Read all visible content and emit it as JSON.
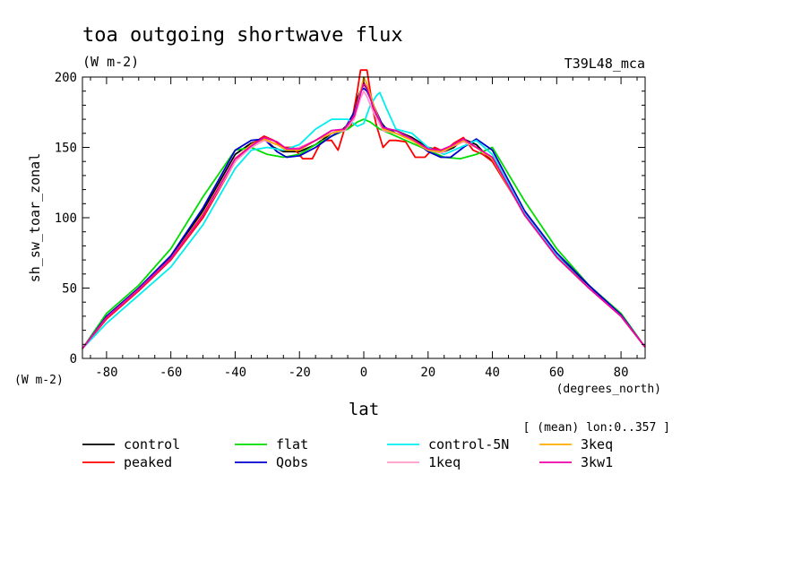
{
  "chart_data": {
    "type": "line",
    "title": "toa outgoing shortwave flux",
    "units": "(W m-2)",
    "run_label": "T39L48_mca",
    "ylabel": "sh_sw_toar_zonal",
    "y_units": "(W m-2)",
    "xlabel": "lat",
    "x_units": "(degrees_north)",
    "mean_note": "[ (mean) lon:0..357 ]",
    "xlim": [
      -87.5,
      87.5
    ],
    "ylim": [
      0,
      200
    ],
    "x_ticks": [
      -80,
      -60,
      -40,
      -20,
      0,
      20,
      40,
      60,
      80
    ],
    "x_tick_labels": [
      "-80",
      "-60",
      "-40",
      "-20",
      "0",
      "20",
      "40",
      "60",
      "80"
    ],
    "y_ticks": [
      0,
      50,
      100,
      150,
      200
    ],
    "y_tick_labels": [
      "0",
      "50",
      "100",
      "150",
      "200"
    ],
    "grid": false,
    "legend_position": "bottom",
    "series": [
      {
        "name": "control",
        "color": "#000000",
        "x": [
          -87.5,
          -80,
          -70,
          -60,
          -50,
          -40,
          -35,
          -31,
          -28,
          -25,
          -20,
          -15,
          -10,
          -7,
          -4,
          -2,
          0,
          2,
          4,
          7,
          10,
          15,
          20,
          25,
          28,
          31,
          35,
          40,
          50,
          60,
          70,
          80,
          87.5
        ],
        "y": [
          7,
          30,
          50,
          72,
          105,
          145,
          153,
          156,
          150,
          147,
          147,
          152,
          160,
          162,
          168,
          185,
          195,
          188,
          172,
          163,
          162,
          157,
          150,
          147,
          150,
          156,
          152,
          140,
          103,
          73,
          52,
          30,
          8
        ]
      },
      {
        "name": "peaked",
        "color": "#ff0000",
        "x": [
          -87.5,
          -80,
          -70,
          -60,
          -50,
          -40,
          -35,
          -31,
          -28,
          -25,
          -22,
          -19,
          -16,
          -13,
          -10,
          -8,
          -6,
          -4,
          -2,
          -1,
          1,
          2,
          3,
          4,
          6,
          8,
          10,
          13,
          16,
          19,
          22,
          25,
          28,
          31,
          34,
          37,
          40,
          50,
          60,
          70,
          80,
          87.5
        ],
        "y": [
          7,
          28,
          48,
          70,
          100,
          140,
          152,
          158,
          155,
          150,
          150,
          142,
          142,
          155,
          155,
          148,
          163,
          165,
          190,
          205,
          205,
          190,
          175,
          165,
          150,
          155,
          155,
          154,
          143,
          143,
          150,
          147,
          153,
          157,
          148,
          145,
          140,
          103,
          72,
          50,
          30,
          8
        ]
      },
      {
        "name": "flat",
        "color": "#00dd00",
        "x": [
          -87.5,
          -80,
          -70,
          -60,
          -50,
          -40,
          -35,
          -30,
          -25,
          -20,
          -15,
          -10,
          -5,
          -2,
          0,
          2,
          5,
          10,
          15,
          20,
          25,
          30,
          35,
          40,
          50,
          60,
          70,
          80,
          87.5
        ],
        "y": [
          7,
          32,
          52,
          78,
          115,
          148,
          150,
          145,
          143,
          145,
          152,
          158,
          163,
          168,
          170,
          168,
          163,
          158,
          153,
          148,
          143,
          142,
          145,
          150,
          112,
          78,
          52,
          32,
          8
        ]
      },
      {
        "name": "Qobs",
        "color": "#0000cc",
        "x": [
          -87.5,
          -80,
          -70,
          -60,
          -50,
          -40,
          -35,
          -31,
          -27,
          -24,
          -20,
          -15,
          -10,
          -6,
          -3,
          -1,
          0,
          1,
          3,
          6,
          10,
          15,
          20,
          24,
          27,
          31,
          35,
          40,
          50,
          60,
          70,
          80,
          87.5
        ],
        "y": [
          7,
          30,
          50,
          73,
          107,
          148,
          155,
          156,
          147,
          143,
          144,
          150,
          158,
          163,
          175,
          190,
          192,
          190,
          180,
          165,
          160,
          156,
          147,
          143,
          143,
          150,
          156,
          148,
          105,
          75,
          52,
          31,
          8
        ]
      },
      {
        "name": "control-5N",
        "color": "#00eeee",
        "x": [
          -87.5,
          -80,
          -70,
          -60,
          -50,
          -40,
          -35,
          -30,
          -25,
          -20,
          -15,
          -10,
          -5,
          -2,
          0,
          2,
          4,
          5,
          7,
          10,
          15,
          20,
          25,
          30,
          35,
          40,
          50,
          60,
          70,
          80,
          87.5
        ],
        "y": [
          7,
          25,
          45,
          65,
          95,
          135,
          148,
          150,
          148,
          152,
          163,
          170,
          170,
          165,
          167,
          180,
          187,
          189,
          178,
          163,
          160,
          150,
          145,
          150,
          155,
          145,
          103,
          73,
          50,
          30,
          8
        ]
      },
      {
        "name": "1keq",
        "color": "#ff99cc",
        "x": [
          -87.5,
          -80,
          -70,
          -60,
          -50,
          -40,
          -35,
          -31,
          -27,
          -24,
          -20,
          -15,
          -10,
          -6,
          -3,
          -1,
          0,
          1,
          3,
          6,
          10,
          15,
          20,
          24,
          27,
          31,
          35,
          40,
          50,
          60,
          70,
          80,
          87.5
        ],
        "y": [
          7,
          29,
          49,
          71,
          102,
          140,
          150,
          155,
          152,
          148,
          150,
          155,
          160,
          162,
          170,
          185,
          190,
          186,
          175,
          162,
          160,
          155,
          148,
          146,
          150,
          154,
          150,
          142,
          102,
          72,
          50,
          30,
          8
        ]
      },
      {
        "name": "3keq",
        "color": "#ffaa00",
        "x": [
          -87.5,
          -80,
          -70,
          -60,
          -50,
          -40,
          -35,
          -31,
          -27,
          -24,
          -20,
          -15,
          -10,
          -6,
          -3,
          -1,
          0,
          1,
          3,
          6,
          10,
          15,
          20,
          24,
          27,
          31,
          35,
          40,
          50,
          60,
          70,
          80,
          87.5
        ],
        "y": [
          7,
          29,
          49,
          71,
          103,
          142,
          152,
          156,
          152,
          148,
          148,
          155,
          160,
          163,
          172,
          190,
          200,
          195,
          180,
          163,
          160,
          155,
          148,
          147,
          150,
          155,
          150,
          142,
          102,
          72,
          50,
          30,
          8
        ]
      },
      {
        "name": "3kw1",
        "color": "#ee00aa",
        "x": [
          -87.5,
          -80,
          -70,
          -60,
          -50,
          -40,
          -35,
          -31,
          -27,
          -24,
          -20,
          -15,
          -10,
          -6,
          -3,
          -1,
          0,
          1,
          3,
          6,
          10,
          15,
          20,
          24,
          27,
          31,
          35,
          40,
          50,
          60,
          70,
          80,
          87.5
        ],
        "y": [
          7,
          29,
          49,
          71,
          102,
          142,
          151,
          157,
          154,
          149,
          149,
          155,
          162,
          163,
          172,
          188,
          196,
          192,
          178,
          164,
          162,
          156,
          149,
          148,
          151,
          156,
          150,
          143,
          102,
          72,
          50,
          30,
          8
        ]
      }
    ]
  }
}
